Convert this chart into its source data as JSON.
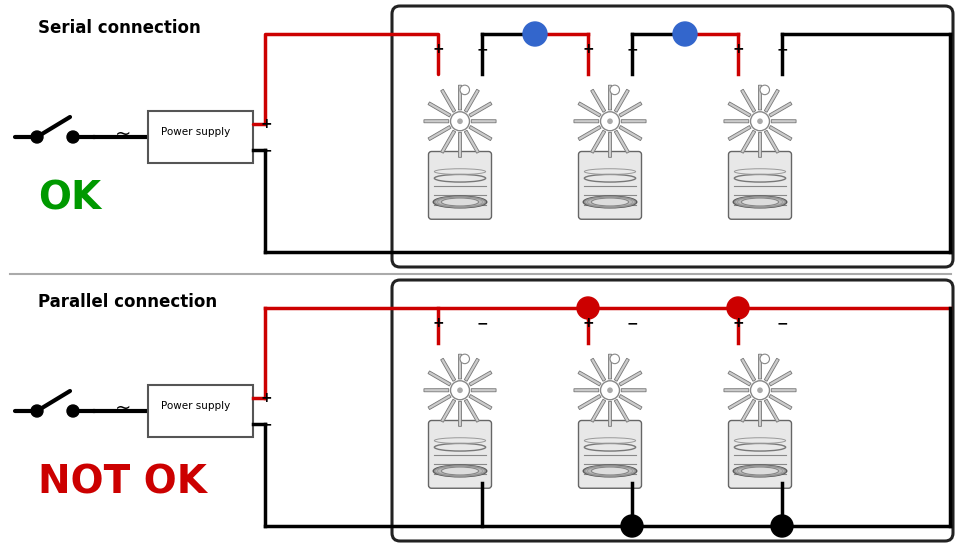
{
  "title_serial": "Serial connection",
  "title_parallel": "Parallel connection",
  "ok_text": "OK",
  "ok_color": "#009900",
  "notok_text": "NOT OK",
  "notok_color": "#cc0000",
  "wire_red": "#cc0000",
  "wire_black": "#000000",
  "wire_blue": "#3366cc",
  "wire_red_dot": "#cc0000",
  "wire_black_dot": "#000000",
  "bg_color": "#ffffff",
  "divider_color": "#aaaaaa",
  "ps_box_color": "#444444",
  "led_color": "#555555",
  "led_body": "#dddddd",
  "box_border": "#222222"
}
